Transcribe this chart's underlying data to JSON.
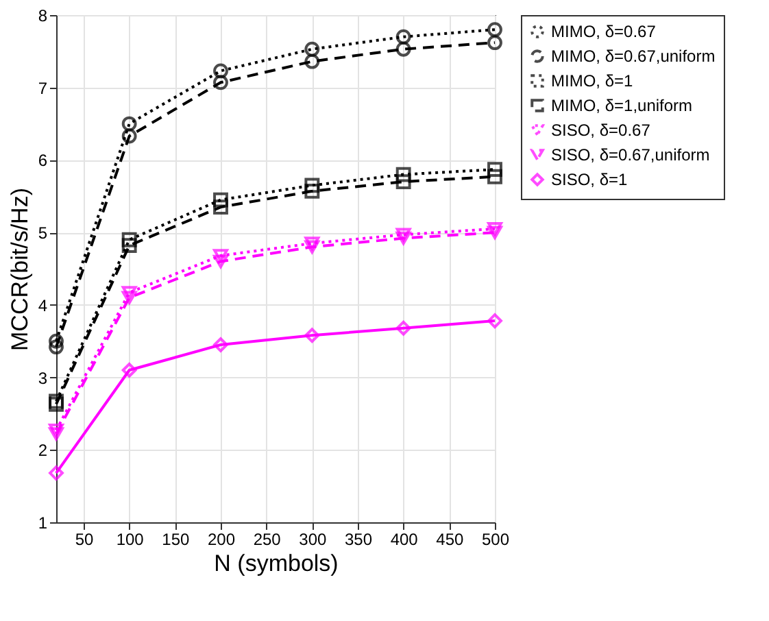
{
  "chart_data": {
    "type": "line",
    "xlabel": "N (symbols)",
    "ylabel": "MCCR(bit/s/Hz)",
    "x": [
      20,
      100,
      200,
      300,
      400,
      500
    ],
    "xlim": [
      20,
      500
    ],
    "xticks": [
      50,
      100,
      150,
      200,
      250,
      300,
      350,
      400,
      450,
      500
    ],
    "ylim": [
      1,
      8
    ],
    "yticks": [
      1,
      2,
      3,
      4,
      5,
      6,
      7,
      8
    ],
    "grid": true,
    "legend": "right",
    "series": [
      {
        "name": "MIMO, δ=0.67",
        "color": "#000000",
        "marker": "circle",
        "line_style": "dotted",
        "values": [
          3.5,
          6.5,
          7.23,
          7.53,
          7.7,
          7.8
        ]
      },
      {
        "name": "MIMO, δ=0.67,uniform",
        "color": "#000000",
        "marker": "circle",
        "line_style": "dashed",
        "values": [
          3.42,
          6.33,
          7.07,
          7.36,
          7.53,
          7.62
        ]
      },
      {
        "name": "MIMO, δ=1",
        "color": "#000000",
        "marker": "square",
        "line_style": "dotted",
        "values": [
          2.67,
          4.9,
          5.45,
          5.65,
          5.8,
          5.87
        ]
      },
      {
        "name": "MIMO, δ=1,uniform",
        "color": "#000000",
        "marker": "square",
        "line_style": "dashed",
        "values": [
          2.63,
          4.82,
          5.35,
          5.57,
          5.7,
          5.77
        ]
      },
      {
        "name": "SISO, δ=0.67",
        "color": "#ff00ff",
        "marker": "triangle",
        "line_style": "dotted",
        "values": [
          2.27,
          4.17,
          4.68,
          4.85,
          4.97,
          5.05
        ]
      },
      {
        "name": "SISO, δ=0.67,uniform",
        "color": "#ff00ff",
        "marker": "triangle",
        "line_style": "dashed",
        "values": [
          2.22,
          4.1,
          4.6,
          4.8,
          4.92,
          5.0
        ]
      },
      {
        "name": "SISO, δ=1",
        "color": "#ff00ff",
        "marker": "diamond",
        "line_style": "solid",
        "values": [
          1.68,
          3.1,
          3.45,
          3.58,
          3.68,
          3.78
        ]
      }
    ]
  }
}
